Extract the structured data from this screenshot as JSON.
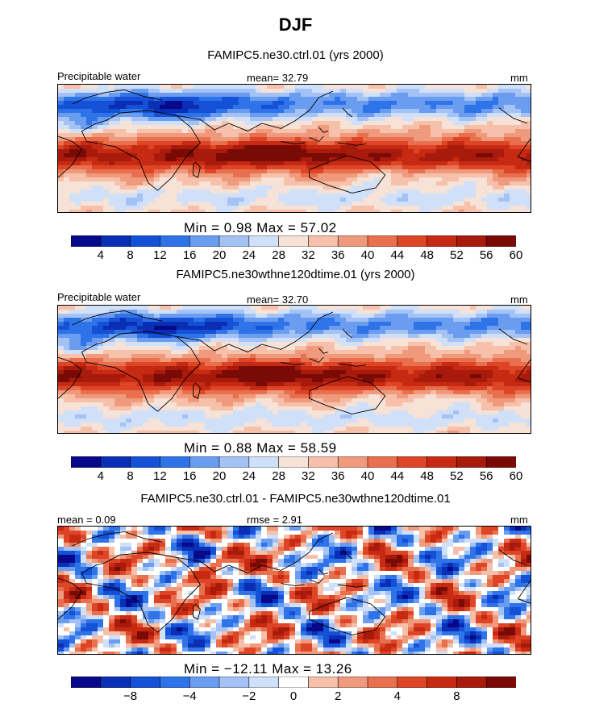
{
  "title": "DJF",
  "colors": {
    "seq_palette": [
      "#08088a",
      "#0a2fb5",
      "#1551d6",
      "#2f73e8",
      "#6a9cf0",
      "#a4c2f4",
      "#d0e0f8",
      "#f6e2d6",
      "#f6c0aa",
      "#f09a7d",
      "#e8704e",
      "#de4526",
      "#c72a12",
      "#a81b0c",
      "#7a0a06"
    ],
    "diff_palette": [
      "#08088a",
      "#0a2fb5",
      "#1551d6",
      "#2f73e8",
      "#6a9cf0",
      "#a4c2f4",
      "#d0e0f8",
      "#ffffff",
      "#f6c0aa",
      "#f09a7d",
      "#e8704e",
      "#de4526",
      "#c72a12",
      "#a81b0c",
      "#7a0a06"
    ]
  },
  "panels": [
    {
      "case_title": "FAMIPC5.ne30.ctrl.01 (yrs 2000)",
      "left_label": "Precipitable water",
      "center_label": "mean=  32.79",
      "right_label": "mm",
      "minmax": "Min =    0.98  Max =   57.02"
    },
    {
      "case_title": "FAMIPC5.ne30wthne120dtime.01 (yrs 2000)",
      "left_label": "Precipitable water",
      "center_label": "mean=  32.70",
      "right_label": "mm",
      "minmax": "Min =    0.88  Max =   58.59"
    },
    {
      "case_title": "FAMIPC5.ne30.ctrl.01 - FAMIPC5.ne30wthne120dtime.01",
      "left_label": "mean =    0.09",
      "center_label": "rmse =    2.91",
      "right_label": "mm",
      "minmax": "Min = −12.11  Max =   13.26"
    }
  ],
  "chart_data": [
    {
      "type": "heatmap",
      "title": "FAMIPC5.ne30.ctrl.01 (yrs 2000)",
      "field": "Precipitable water",
      "units": "mm",
      "season": "DJF",
      "mean": 32.79,
      "min": 0.98,
      "max": 57.02,
      "colorbar_ticks": [
        "4",
        "8",
        "12",
        "16",
        "20",
        "24",
        "28",
        "32",
        "36",
        "40",
        "44",
        "48",
        "52",
        "56",
        "60"
      ]
    },
    {
      "type": "heatmap",
      "title": "FAMIPC5.ne30wthne120dtime.01 (yrs 2000)",
      "field": "Precipitable water",
      "units": "mm",
      "season": "DJF",
      "mean": 32.7,
      "min": 0.88,
      "max": 58.59,
      "colorbar_ticks": [
        "4",
        "8",
        "12",
        "16",
        "20",
        "24",
        "28",
        "32",
        "36",
        "40",
        "44",
        "48",
        "52",
        "56",
        "60"
      ]
    },
    {
      "type": "heatmap",
      "title": "FAMIPC5.ne30.ctrl.01 - FAMIPC5.ne30wthne120dtime.01",
      "units": "mm",
      "season": "DJF",
      "mean": 0.09,
      "rmse": 2.91,
      "min": -12.11,
      "max": 13.26,
      "colorbar_ticks": [
        "−8",
        "−4",
        "−2",
        "0",
        "2",
        "4",
        "8"
      ]
    }
  ]
}
